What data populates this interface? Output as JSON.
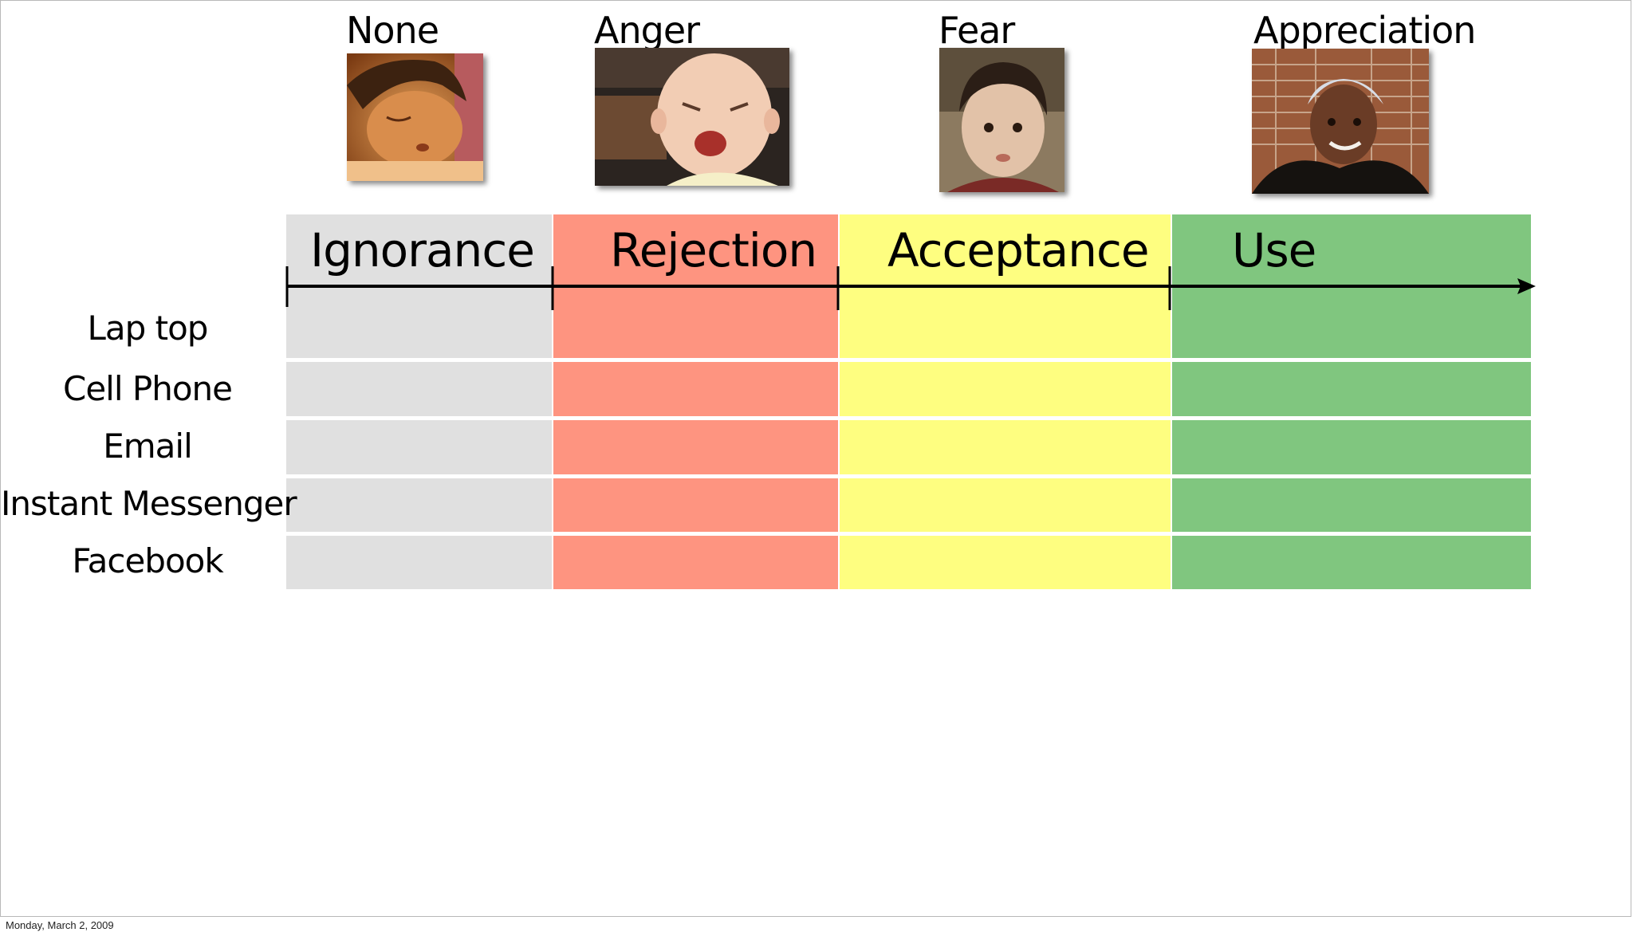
{
  "emotions": [
    {
      "label": "None",
      "photo_icon": "sleeping-child-photo"
    },
    {
      "label": "Anger",
      "photo_icon": "angry-baby-photo"
    },
    {
      "label": "Fear",
      "photo_icon": "scared-boy-photo"
    },
    {
      "label": "Appreciation",
      "photo_icon": "smiling-girl-photo"
    }
  ],
  "stages": [
    {
      "label": "Ignorance",
      "color": "#e0e0e0"
    },
    {
      "label": "Rejection",
      "color": "#fe9480"
    },
    {
      "label": "Acceptance",
      "color": "#fefe80"
    },
    {
      "label": "Use",
      "color": "#80c67f"
    }
  ],
  "rows": [
    "Lap top",
    "Cell Phone",
    "Email",
    "Instant Messenger",
    "Facebook"
  ],
  "footer": {
    "date": "Monday, March 2, 2009"
  }
}
